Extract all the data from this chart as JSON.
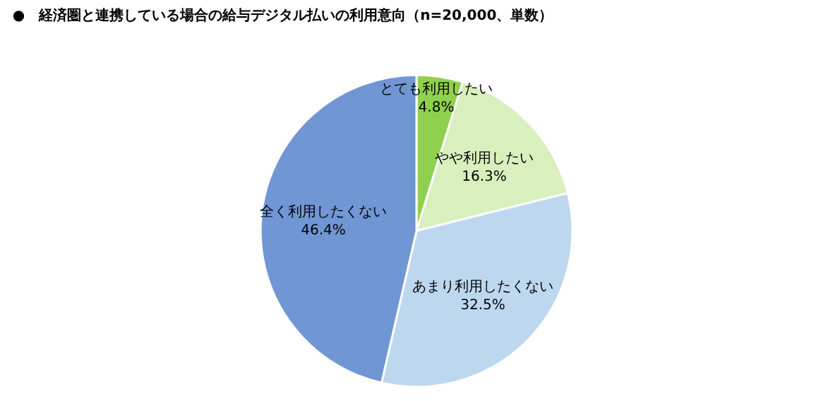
{
  "chart_data": {
    "type": "pie",
    "title": "●　経済圏と連携している場合の給与デジタル払いの利用意向（n=20,000、単数）",
    "categories": [
      "とても利用したい",
      "やや利用したい",
      "あまり利用したくない",
      "全く利用したくない"
    ],
    "values": [
      4.8,
      16.3,
      32.5,
      46.4
    ],
    "value_labels": [
      "4.8%",
      "16.3%",
      "32.5%",
      "46.4%"
    ],
    "colors": [
      "#8fd14f",
      "#d9efbd",
      "#bdd7ee",
      "#7096d4"
    ],
    "legend": false
  }
}
